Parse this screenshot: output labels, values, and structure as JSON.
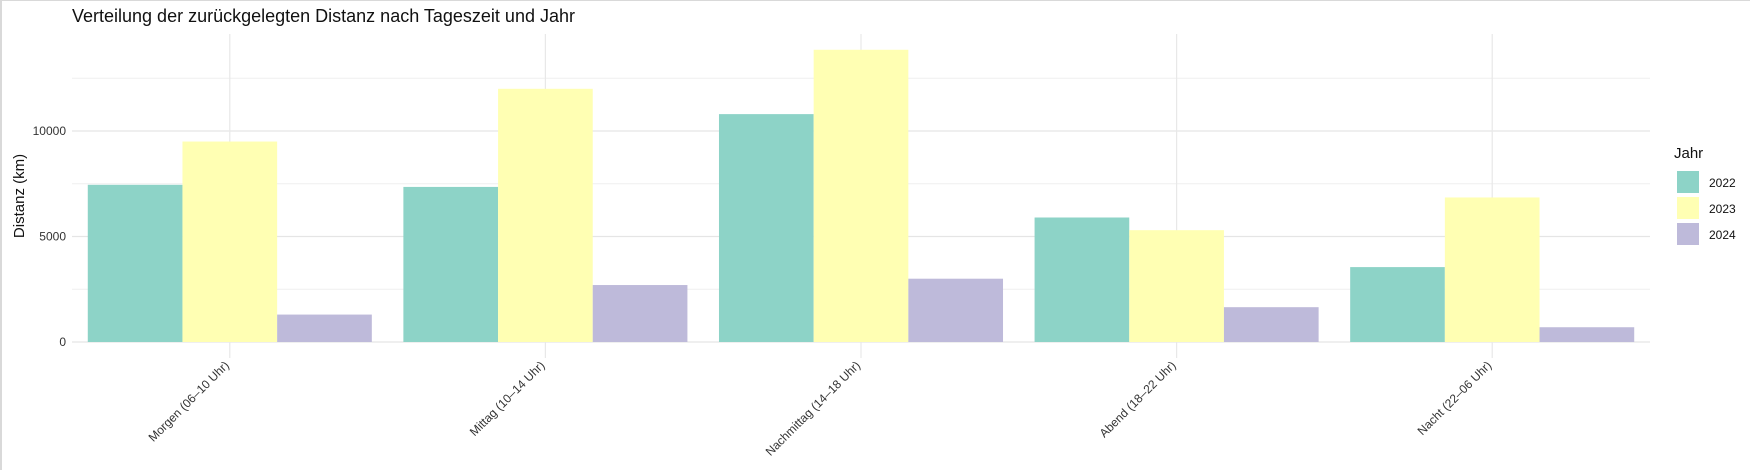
{
  "chart_data": {
    "type": "bar",
    "title": "Verteilung der zurückgelegten Distanz nach Tageszeit und Jahr",
    "xlabel": "",
    "ylabel": "Distanz (km)",
    "categories": [
      "Morgen (06–10 Uhr)",
      "Mittag (10–14 Uhr)",
      "Nachmittag (14–18 Uhr)",
      "Abend (18–22 Uhr)",
      "Nacht (22–06 Uhr)"
    ],
    "series": [
      {
        "name": "2022",
        "color": "#8DD3C7",
        "values": [
          7450,
          7350,
          10800,
          5900,
          3550
        ]
      },
      {
        "name": "2023",
        "color": "#FFFFB3",
        "values": [
          9500,
          12000,
          13850,
          5300,
          6850
        ]
      },
      {
        "name": "2024",
        "color": "#BEBADA",
        "values": [
          1300,
          2700,
          3000,
          1650,
          700
        ]
      }
    ],
    "ylim": [
      -700,
      14500
    ],
    "y_ticks": [
      "0",
      "5000",
      "10000"
    ],
    "grid": true,
    "legend": {
      "title": "Jahr",
      "position": "right"
    }
  }
}
